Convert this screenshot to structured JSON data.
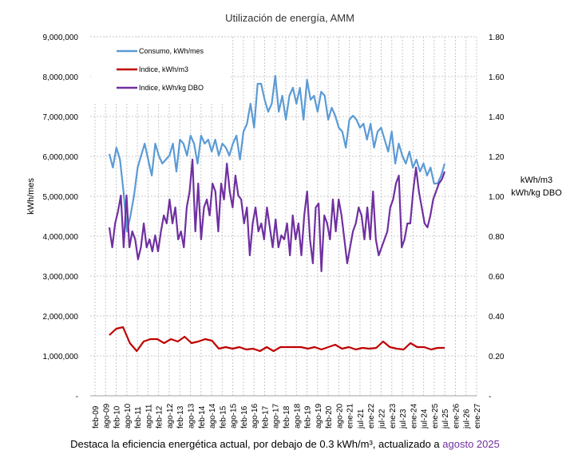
{
  "chart_data": {
    "type": "line",
    "title": "Utilización  de energía,  AMM",
    "ylabel": "kWh/mes",
    "y2label": [
      "kWh/m3",
      "kWh/kg DBO"
    ],
    "ylim": [
      0,
      9000000
    ],
    "y2lim": [
      0,
      1.8
    ],
    "yticks": [
      "-",
      "1,000,000",
      "2,000,000",
      "3,000,000",
      "4,000,000",
      "5,000,000",
      "6,000,000",
      "7,000,000",
      "8,000,000",
      "9,000,000"
    ],
    "y2ticks": [
      "-",
      "0.20",
      "0.40",
      "0.60",
      "0.80",
      "1.00",
      "1.20",
      "1.40",
      "1.60",
      "1.80"
    ],
    "xticks": [
      "feb-09",
      "ago-09",
      "feb-10",
      "ago-10",
      "feb-11",
      "ago-11",
      "feb-12",
      "ago-12",
      "feb-13",
      "ago-13",
      "feb-14",
      "ago-14",
      "feb-15",
      "ago-15",
      "feb-16",
      "ago-16",
      "feb-17",
      "ago-17",
      "feb-18",
      "ago-18",
      "feb-19",
      "ago-19",
      "feb-20",
      "ago-20",
      "ene-21",
      "jul-21",
      "ene-22",
      "jul-22",
      "ene-23",
      "jul-23",
      "ene-24",
      "jul-24",
      "ene-25",
      "jul-25",
      "ene-26",
      "jul-26",
      "ene-27"
    ],
    "x_range": [
      "ene-10",
      "ago-25"
    ],
    "grid": true,
    "legend_position": "top-left",
    "series": [
      {
        "name": "Consumo, kWh/mes",
        "axis": "left",
        "color": "#5b9bd5",
        "values": [
          6060000,
          5720000,
          6220000,
          5920000,
          5120000,
          4120000,
          4520000,
          5020000,
          5720000,
          6020000,
          6320000,
          5920000,
          5520000,
          6320000,
          6020000,
          5820000,
          5920000,
          6020000,
          6320000,
          5620000,
          6420000,
          6320000,
          6020000,
          6520000,
          6320000,
          5820000,
          6520000,
          6320000,
          6420000,
          6120000,
          6420000,
          6020000,
          6320000,
          6220000,
          6020000,
          6320000,
          6520000,
          5920000,
          6620000,
          6820000,
          7320000,
          6720000,
          7820000,
          7820000,
          7420000,
          7120000,
          7320000,
          8020000,
          7120000,
          7520000,
          6920000,
          7520000,
          7720000,
          7320000,
          7720000,
          6920000,
          7920000,
          7420000,
          7520000,
          7120000,
          7620000,
          7520000,
          6920000,
          7220000,
          7020000,
          6720000,
          6620000,
          6220000,
          6920000,
          7020000,
          6920000,
          6720000,
          6820000,
          6420000,
          6820000,
          6220000,
          6620000,
          6720000,
          6420000,
          6120000,
          6620000,
          5820000,
          6320000,
          6020000,
          5820000,
          6120000,
          5720000,
          5920000,
          5620000,
          5820000,
          5520000,
          5720000,
          5320000,
          5320000,
          5520000,
          5820000
        ]
      },
      {
        "name": "Indice, kWh/m3",
        "axis": "right",
        "color": "#c00000",
        "values": [
          0.304,
          0.336,
          0.344,
          0.264,
          0.224,
          0.272,
          0.284,
          0.284,
          0.264,
          0.284,
          0.272,
          0.296,
          0.264,
          0.272,
          0.284,
          0.276,
          0.236,
          0.244,
          0.236,
          0.244,
          0.232,
          0.236,
          0.224,
          0.244,
          0.224,
          0.244,
          0.244,
          0.244,
          0.244,
          0.236,
          0.244,
          0.232,
          0.244,
          0.256,
          0.236,
          0.244,
          0.232,
          0.24,
          0.236,
          0.24,
          0.272,
          0.244,
          0.236,
          0.232,
          0.264,
          0.244,
          0.244,
          0.232,
          0.24,
          0.24
        ]
      },
      {
        "name": "Indice, kWh/kg DBO",
        "axis": "right",
        "color": "#7030a0",
        "values": [
          0.844,
          0.744,
          0.864,
          0.924,
          1.004,
          0.744,
          1.004,
          0.744,
          0.824,
          0.784,
          0.684,
          0.744,
          0.864,
          0.744,
          0.784,
          0.724,
          0.804,
          0.724,
          0.824,
          0.904,
          0.864,
          0.984,
          0.864,
          0.944,
          0.784,
          0.824,
          0.744,
          0.944,
          1.024,
          1.184,
          0.824,
          1.064,
          0.784,
          0.944,
          0.984,
          0.904,
          1.064,
          1.024,
          0.824,
          1.064,
          0.984,
          1.164,
          1.024,
          0.944,
          1.104,
          1.004,
          0.984,
          0.864,
          0.944,
          0.704,
          0.864,
          0.944,
          0.824,
          0.864,
          0.784,
          0.944,
          0.844,
          0.744,
          0.884,
          0.744,
          0.804,
          0.784,
          0.864,
          0.704,
          0.904,
          0.784,
          0.864,
          0.704,
          0.904,
          1.024,
          0.784,
          0.664,
          0.944,
          0.964,
          0.624,
          0.904,
          0.864,
          0.784,
          0.984,
          0.824,
          0.984,
          0.904,
          0.784,
          0.664,
          0.744,
          0.824,
          0.864,
          0.944,
          0.904,
          0.784,
          0.944,
          0.784,
          1.024,
          0.784,
          0.704,
          0.744,
          0.784,
          0.824,
          0.944,
          0.984,
          1.064,
          1.104,
          0.744,
          0.784,
          0.864,
          0.864,
          1.024,
          1.144,
          1.024,
          0.944,
          0.864,
          0.844,
          0.904,
          0.984,
          1.024,
          1.064,
          1.084,
          1.124
        ]
      }
    ]
  },
  "caption": {
    "text": "Destaca la eficiencia energética actual, por debajo de 0.3 kWh/m³, actualizado a ",
    "highlight": "agosto 2025",
    "highlight_color": "#7030a0"
  }
}
